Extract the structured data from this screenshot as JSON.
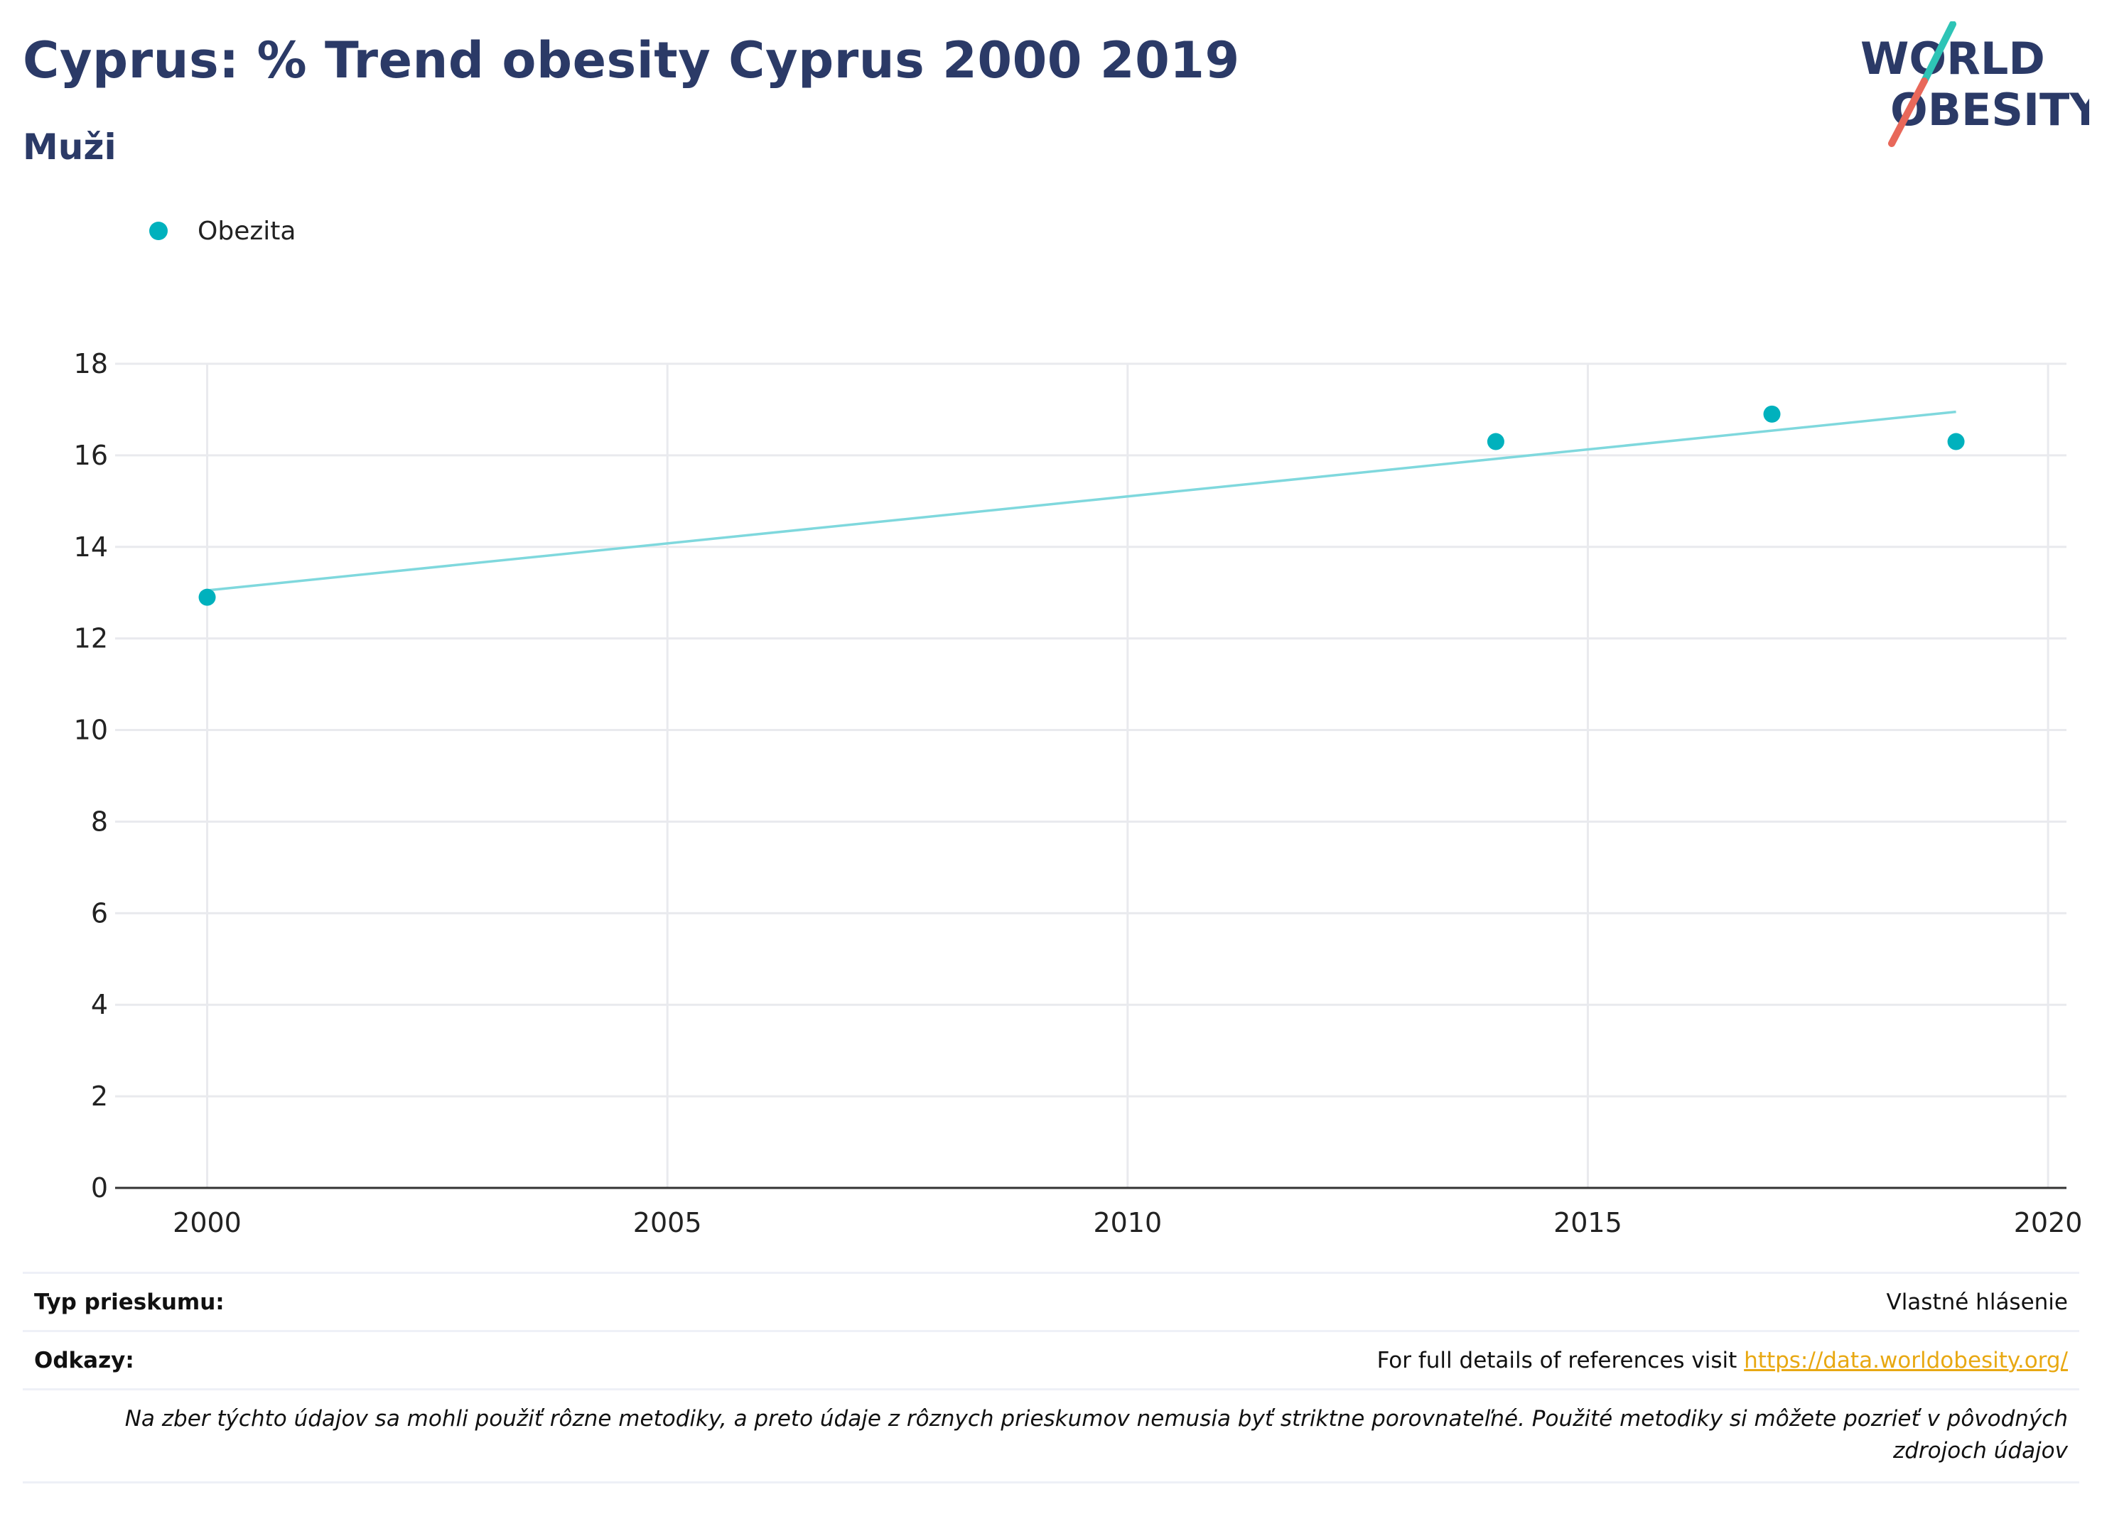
{
  "header": {
    "title": "Cyprus: % Trend obesity Cyprus 2000 2019",
    "subtitle": "Muži",
    "logo_text_line1": "WORLD",
    "logo_text_line2": "OBESITY"
  },
  "colors": {
    "title": "#2b3a67",
    "series": "#00b1bd",
    "trend": "#7fd8dd",
    "grid": "#e9eaee",
    "link": "#e8a812",
    "logo_teal": "#2ec4b6",
    "logo_coral": "#e8685a"
  },
  "chart_data": {
    "type": "scatter",
    "title": "Cyprus: % Trend obesity Cyprus 2000 2019",
    "subtitle": "Muži",
    "legend_position": "top-left",
    "grid": true,
    "xlim": [
      1999,
      2020.2
    ],
    "ylim": [
      0,
      18
    ],
    "x_ticks": [
      2000,
      2005,
      2010,
      2015,
      2020
    ],
    "y_ticks": [
      0,
      2,
      4,
      6,
      8,
      10,
      12,
      14,
      16,
      18
    ],
    "series": [
      {
        "name": "Obezita",
        "x": [
          2000,
          2014,
          2017,
          2019
        ],
        "y": [
          12.9,
          16.3,
          16.9,
          16.3
        ]
      }
    ],
    "trendline": {
      "x": [
        2000,
        2019
      ],
      "y": [
        13.05,
        16.95
      ]
    }
  },
  "footer": {
    "survey_type_label": "Typ prieskumu:",
    "survey_type_value": "Vlastné hlásenie",
    "references_label": "Odkazy:",
    "references_text": "For full details of references visit",
    "references_link": "https://data.worldobesity.org/",
    "note": "Na zber týchto údajov sa mohli použiť rôzne metodiky, a preto údaje z rôznych prieskumov nemusia byť striktne porovnateľné. Použité metodiky si môžete pozrieť v pôvodných zdrojoch údajov"
  }
}
